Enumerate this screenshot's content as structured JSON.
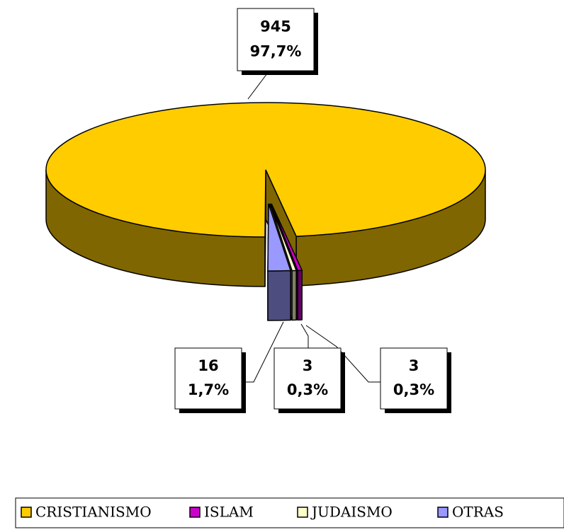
{
  "chart_data": {
    "type": "pie3d",
    "categories": [
      "CRISTIANISMO",
      "ISLAM",
      "JUDAISMO",
      "OTRAS"
    ],
    "values": [
      945,
      3,
      3,
      16
    ],
    "percent_labels": [
      "97,7%",
      "0,3%",
      "0,3%",
      "1,7%"
    ],
    "colors": [
      "#FFCC00",
      "#CC00CC",
      "#FFFFCC",
      "#9999FF"
    ],
    "legend": "bottom"
  }
}
